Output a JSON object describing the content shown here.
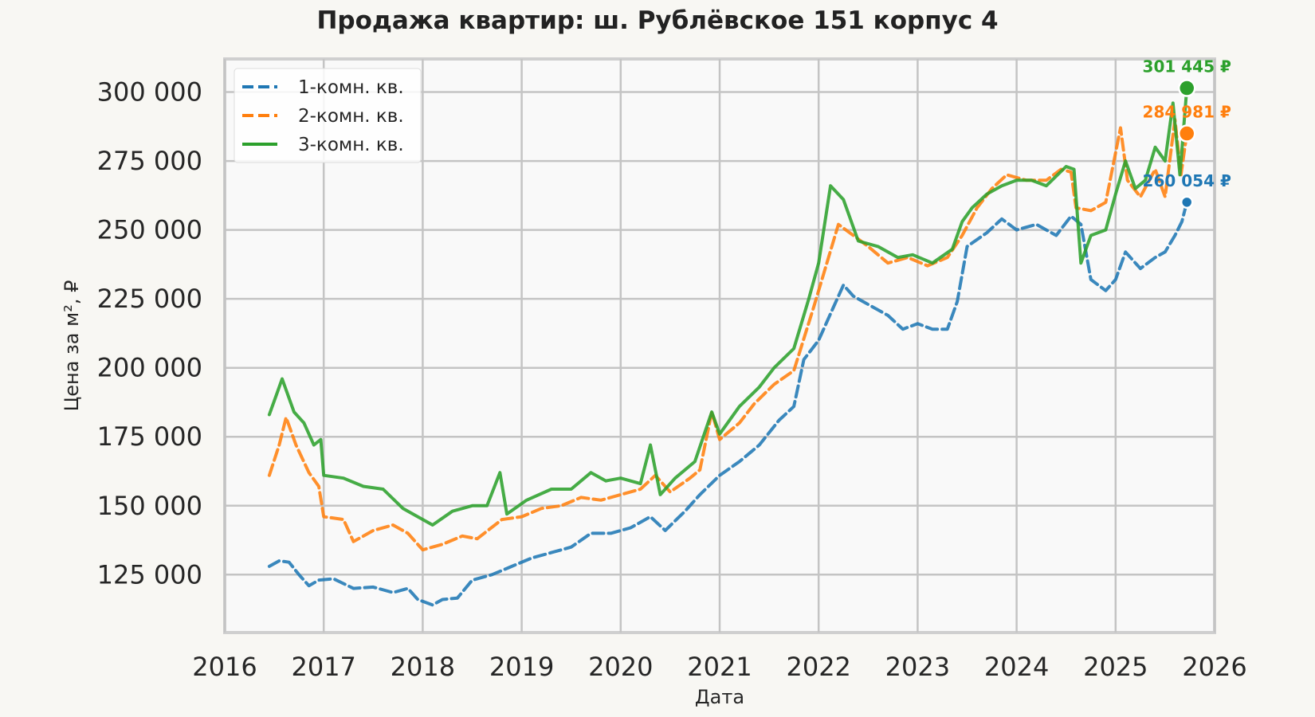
{
  "chart_data": {
    "type": "line",
    "title": "Продажа квартир: ш. Рублёвское 151 корпус 4",
    "xlabel": "Дата",
    "ylabel": "Цена за м², ₽",
    "xlim": [
      2016,
      2026
    ],
    "ylim": [
      104000,
      312000
    ],
    "x_ticks": [
      "2016",
      "2017",
      "2018",
      "2019",
      "2020",
      "2021",
      "2022",
      "2023",
      "2024",
      "2025",
      "2026"
    ],
    "y_ticks": [
      "125 000",
      "150 000",
      "175 000",
      "200 000",
      "225 000",
      "250 000",
      "275 000",
      "300 000"
    ],
    "grid": true,
    "legend_position": "top-left",
    "series": [
      {
        "name": "1-комн. кв.",
        "color": "#1f77b4",
        "style": "dashed",
        "end_label": "260 054 ₽",
        "end_value": 260054,
        "points": [
          [
            2016.45,
            128000
          ],
          [
            2016.55,
            130000
          ],
          [
            2016.65,
            129500
          ],
          [
            2016.75,
            125000
          ],
          [
            2016.85,
            121000
          ],
          [
            2016.95,
            123000
          ],
          [
            2017.1,
            123500
          ],
          [
            2017.3,
            120000
          ],
          [
            2017.5,
            120500
          ],
          [
            2017.7,
            118500
          ],
          [
            2017.85,
            120000
          ],
          [
            2017.95,
            116000
          ],
          [
            2018.1,
            114000
          ],
          [
            2018.2,
            116000
          ],
          [
            2018.35,
            116500
          ],
          [
            2018.5,
            123000
          ],
          [
            2018.7,
            125000
          ],
          [
            2018.9,
            128000
          ],
          [
            2019.1,
            131000
          ],
          [
            2019.3,
            133000
          ],
          [
            2019.5,
            135000
          ],
          [
            2019.7,
            140000
          ],
          [
            2019.9,
            140000
          ],
          [
            2020.1,
            142000
          ],
          [
            2020.3,
            146000
          ],
          [
            2020.45,
            141000
          ],
          [
            2020.65,
            148000
          ],
          [
            2020.8,
            154000
          ],
          [
            2021.0,
            161000
          ],
          [
            2021.2,
            166000
          ],
          [
            2021.4,
            172000
          ],
          [
            2021.6,
            181000
          ],
          [
            2021.75,
            186000
          ],
          [
            2021.85,
            203000
          ],
          [
            2022.0,
            210000
          ],
          [
            2022.15,
            222000
          ],
          [
            2022.25,
            230000
          ],
          [
            2022.35,
            226000
          ],
          [
            2022.5,
            223000
          ],
          [
            2022.7,
            219000
          ],
          [
            2022.85,
            214000
          ],
          [
            2023.0,
            216000
          ],
          [
            2023.15,
            214000
          ],
          [
            2023.3,
            214000
          ],
          [
            2023.4,
            224000
          ],
          [
            2023.5,
            244000
          ],
          [
            2023.7,
            249000
          ],
          [
            2023.85,
            254000
          ],
          [
            2024.0,
            250000
          ],
          [
            2024.2,
            252000
          ],
          [
            2024.4,
            248000
          ],
          [
            2024.55,
            255000
          ],
          [
            2024.65,
            252000
          ],
          [
            2024.75,
            232000
          ],
          [
            2024.9,
            228000
          ],
          [
            2025.0,
            232000
          ],
          [
            2025.1,
            242000
          ],
          [
            2025.25,
            236000
          ],
          [
            2025.4,
            240000
          ],
          [
            2025.5,
            242000
          ],
          [
            2025.6,
            248000
          ],
          [
            2025.67,
            253000
          ],
          [
            2025.72,
            260054
          ]
        ]
      },
      {
        "name": "2-комн. кв.",
        "color": "#ff7f0e",
        "style": "dashed",
        "end_label": "284 981 ₽",
        "end_value": 284981,
        "points": [
          [
            2016.45,
            161000
          ],
          [
            2016.55,
            172000
          ],
          [
            2016.62,
            182000
          ],
          [
            2016.72,
            172000
          ],
          [
            2016.85,
            162000
          ],
          [
            2016.95,
            157000
          ],
          [
            2017.0,
            146000
          ],
          [
            2017.2,
            145000
          ],
          [
            2017.3,
            137000
          ],
          [
            2017.5,
            141000
          ],
          [
            2017.7,
            143000
          ],
          [
            2017.85,
            140000
          ],
          [
            2018.0,
            134000
          ],
          [
            2018.2,
            136000
          ],
          [
            2018.4,
            139000
          ],
          [
            2018.55,
            138000
          ],
          [
            2018.8,
            145000
          ],
          [
            2019.0,
            146000
          ],
          [
            2019.2,
            149000
          ],
          [
            2019.4,
            150000
          ],
          [
            2019.6,
            153000
          ],
          [
            2019.8,
            152000
          ],
          [
            2020.0,
            154000
          ],
          [
            2020.2,
            156000
          ],
          [
            2020.35,
            161000
          ],
          [
            2020.5,
            155000
          ],
          [
            2020.7,
            160000
          ],
          [
            2020.8,
            163000
          ],
          [
            2020.92,
            184000
          ],
          [
            2021.0,
            174000
          ],
          [
            2021.2,
            180000
          ],
          [
            2021.35,
            187000
          ],
          [
            2021.55,
            194000
          ],
          [
            2021.75,
            199000
          ],
          [
            2021.95,
            222000
          ],
          [
            2022.1,
            240000
          ],
          [
            2022.2,
            252000
          ],
          [
            2022.35,
            248000
          ],
          [
            2022.5,
            244000
          ],
          [
            2022.7,
            238000
          ],
          [
            2022.9,
            240000
          ],
          [
            2023.1,
            237000
          ],
          [
            2023.3,
            240000
          ],
          [
            2023.45,
            248000
          ],
          [
            2023.6,
            258000
          ],
          [
            2023.75,
            265000
          ],
          [
            2023.9,
            270000
          ],
          [
            2024.1,
            268000
          ],
          [
            2024.3,
            268000
          ],
          [
            2024.45,
            272000
          ],
          [
            2024.55,
            271000
          ],
          [
            2024.6,
            258000
          ],
          [
            2024.75,
            257000
          ],
          [
            2024.9,
            260000
          ],
          [
            2025.0,
            278000
          ],
          [
            2025.05,
            287000
          ],
          [
            2025.12,
            268000
          ],
          [
            2025.25,
            262000
          ],
          [
            2025.4,
            272000
          ],
          [
            2025.5,
            262000
          ],
          [
            2025.6,
            290000
          ],
          [
            2025.66,
            270000
          ],
          [
            2025.72,
            284981
          ]
        ]
      },
      {
        "name": "3-комн. кв.",
        "color": "#2ca02c",
        "style": "solid",
        "end_label": "301 445 ₽",
        "end_value": 301445,
        "points": [
          [
            2016.45,
            183000
          ],
          [
            2016.52,
            190000
          ],
          [
            2016.58,
            196000
          ],
          [
            2016.7,
            184000
          ],
          [
            2016.8,
            180000
          ],
          [
            2016.9,
            172000
          ],
          [
            2016.97,
            174000
          ],
          [
            2017.0,
            161000
          ],
          [
            2017.2,
            160000
          ],
          [
            2017.4,
            157000
          ],
          [
            2017.6,
            156000
          ],
          [
            2017.8,
            149000
          ],
          [
            2017.95,
            146000
          ],
          [
            2018.1,
            143000
          ],
          [
            2018.3,
            148000
          ],
          [
            2018.5,
            150000
          ],
          [
            2018.65,
            150000
          ],
          [
            2018.78,
            162000
          ],
          [
            2018.85,
            147000
          ],
          [
            2019.05,
            152000
          ],
          [
            2019.3,
            156000
          ],
          [
            2019.5,
            156000
          ],
          [
            2019.7,
            162000
          ],
          [
            2019.85,
            159000
          ],
          [
            2020.0,
            160000
          ],
          [
            2020.2,
            158000
          ],
          [
            2020.3,
            172000
          ],
          [
            2020.4,
            154000
          ],
          [
            2020.55,
            160000
          ],
          [
            2020.75,
            166000
          ],
          [
            2020.92,
            184000
          ],
          [
            2021.0,
            176000
          ],
          [
            2021.2,
            186000
          ],
          [
            2021.4,
            193000
          ],
          [
            2021.55,
            200000
          ],
          [
            2021.75,
            207000
          ],
          [
            2021.9,
            225000
          ],
          [
            2022.0,
            238000
          ],
          [
            2022.12,
            266000
          ],
          [
            2022.25,
            261000
          ],
          [
            2022.4,
            246000
          ],
          [
            2022.6,
            244000
          ],
          [
            2022.8,
            240000
          ],
          [
            2022.95,
            241000
          ],
          [
            2023.15,
            238000
          ],
          [
            2023.35,
            243000
          ],
          [
            2023.45,
            253000
          ],
          [
            2023.55,
            258000
          ],
          [
            2023.7,
            263000
          ],
          [
            2023.85,
            266000
          ],
          [
            2024.0,
            268000
          ],
          [
            2024.15,
            268000
          ],
          [
            2024.3,
            266000
          ],
          [
            2024.5,
            273000
          ],
          [
            2024.58,
            272000
          ],
          [
            2024.65,
            238000
          ],
          [
            2024.75,
            248000
          ],
          [
            2024.9,
            250000
          ],
          [
            2025.0,
            263000
          ],
          [
            2025.1,
            275000
          ],
          [
            2025.2,
            265000
          ],
          [
            2025.3,
            268000
          ],
          [
            2025.4,
            280000
          ],
          [
            2025.5,
            275000
          ],
          [
            2025.58,
            296000
          ],
          [
            2025.65,
            270000
          ],
          [
            2025.72,
            301445
          ]
        ]
      }
    ]
  }
}
